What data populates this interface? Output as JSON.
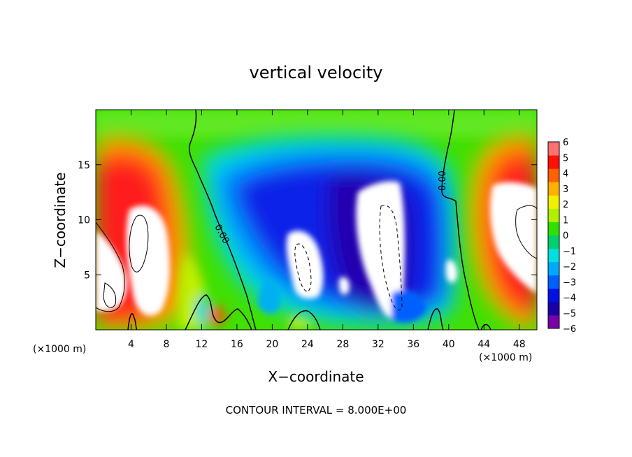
{
  "chart_data": {
    "type": "heatmap",
    "title": "vertical velocity",
    "xlabel": "X−coordinate",
    "ylabel": "Z−coordinate",
    "x_unit": "(×1000 m)",
    "x_unit_right": "(×1000 m)",
    "xlim": [
      0,
      50
    ],
    "ylim": [
      0,
      20
    ],
    "x_ticks": [
      4,
      8,
      12,
      16,
      20,
      24,
      28,
      32,
      36,
      40,
      44,
      48
    ],
    "y_ticks": [
      5,
      10,
      15
    ],
    "colorbar": {
      "min": -6,
      "max": 6,
      "ticks": [
        "6",
        "5",
        "4",
        "3",
        "2",
        "1",
        "0",
        "−1",
        "−2",
        "−3",
        "−4",
        "−5",
        "−6"
      ],
      "colors": [
        "#7a00a8",
        "#1a00a8",
        "#0010e6",
        "#0060ff",
        "#00a8ff",
        "#00e0e0",
        "#00d070",
        "#30e000",
        "#b0f000",
        "#f0f000",
        "#ffb000",
        "#ff6000",
        "#ff1000",
        "#ff7070"
      ]
    },
    "zero_contour_labels": [
      "0.00",
      "0.00"
    ],
    "contour_interval_text": "CONTOUR INTERVAL = 8.000E+00",
    "features": [
      {
        "sign": "updraft",
        "x": [
          0,
          10
        ],
        "z": [
          0,
          18
        ],
        "peak": "above 6"
      },
      {
        "sign": "downdraft",
        "x": [
          18,
          41
        ],
        "z": [
          1,
          16
        ],
        "peak": "below -6"
      },
      {
        "sign": "updraft",
        "x": [
          43,
          50
        ],
        "z": [
          0,
          18
        ],
        "peak": "above 6"
      }
    ]
  }
}
